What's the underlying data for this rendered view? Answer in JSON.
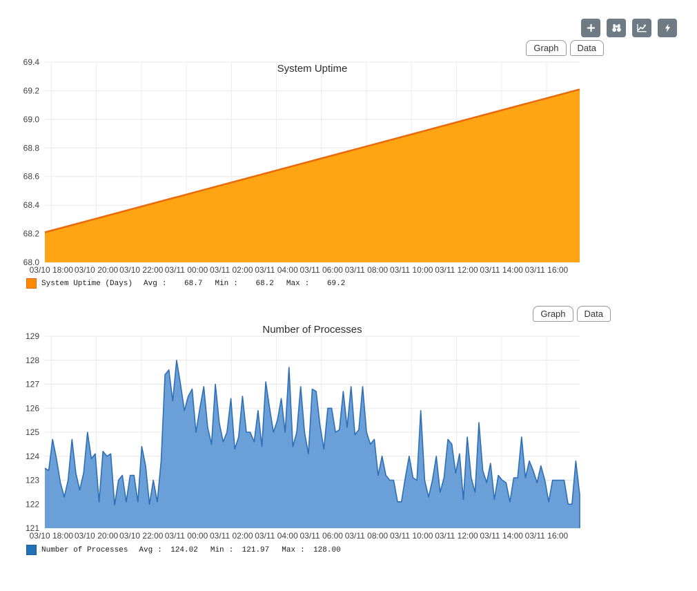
{
  "toolbar": {
    "buttons": [
      {
        "icon": "plus-icon"
      },
      {
        "icon": "binoculars-icon"
      },
      {
        "icon": "line-chart-icon"
      },
      {
        "icon": "lightning-icon"
      }
    ],
    "button_color": "#6e7b85"
  },
  "panels": [
    {
      "tabs": [
        "Graph",
        "Data"
      ],
      "legend": {
        "series": "System Uptime (Days)",
        "swatch_fill": "#ff8c00",
        "swatch_border": "#e8650d",
        "stats": [
          {
            "label": "Avg",
            "colon": ":",
            "value": "68.7"
          },
          {
            "label": "Min",
            "colon": ":",
            "value": "68.2"
          },
          {
            "label": "Max",
            "colon": ":",
            "value": "69.2"
          }
        ]
      }
    },
    {
      "tabs": [
        "Graph",
        "Data"
      ],
      "legend": {
        "series": "Number of Processes",
        "swatch_fill": "#2272b5",
        "swatch_border": "#1b5d99",
        "stats": [
          {
            "label": "Avg",
            "colon": ":",
            "value": "124.02"
          },
          {
            "label": "Min",
            "colon": ":",
            "value": "121.97"
          },
          {
            "label": "Max",
            "colon": ":",
            "value": "128.00"
          }
        ]
      }
    }
  ],
  "chart_data": [
    {
      "type": "area",
      "title": "System Uptime",
      "series_name": "System Uptime (Days)",
      "line_color": "#ea6909",
      "fill_color": "#ffa413",
      "grid": true,
      "legend_position": "bottom",
      "ylim": [
        68.0,
        69.4
      ],
      "y_ticks": [
        68.0,
        68.2,
        68.4,
        68.6,
        68.8,
        69.0,
        69.2,
        69.4
      ],
      "y_tick_labels": [
        "68.0",
        "68.2",
        "68.4",
        "68.6",
        "68.8",
        "69.0",
        "69.2",
        "69.4"
      ],
      "x_tick_labels": [
        "03/10 18:00",
        "03/10 20:00",
        "03/10 22:00",
        "03/11 00:00",
        "03/11 02:00",
        "03/11 04:00",
        "03/11 06:00",
        "03/11 08:00",
        "03/11 10:00",
        "03/11 12:00",
        "03/11 14:00",
        "03/11 16:00"
      ],
      "values": [
        68.21,
        69.21
      ],
      "stats": {
        "avg": 68.7,
        "min": 68.2,
        "max": 69.2
      },
      "close_right_edge": false
    },
    {
      "type": "area",
      "title": "Number of Processes",
      "series_name": "Number of Processes",
      "line_color": "#2d6eb5",
      "fill_color": "#6a9fd8",
      "grid": true,
      "legend_position": "bottom",
      "ylim": [
        121,
        129
      ],
      "y_ticks": [
        121,
        122,
        123,
        124,
        125,
        126,
        127,
        128,
        129
      ],
      "y_tick_labels": [
        "121",
        "122",
        "123",
        "124",
        "125",
        "126",
        "127",
        "128",
        "129"
      ],
      "x_tick_labels": [
        "03/10 18:00",
        "03/10 20:00",
        "03/10 22:00",
        "03/11 00:00",
        "03/11 02:00",
        "03/11 04:00",
        "03/11 06:00",
        "03/11 08:00",
        "03/11 10:00",
        "03/11 12:00",
        "03/11 14:00",
        "03/11 16:00"
      ],
      "values": [
        123.5,
        123.4,
        124.7,
        123.9,
        122.9,
        122.3,
        123.0,
        124.7,
        123.3,
        122.6,
        123.3,
        125.0,
        123.9,
        124.1,
        122.1,
        124.2,
        124.0,
        124.1,
        121.97,
        123.0,
        123.2,
        122.1,
        123.2,
        123.2,
        122.1,
        124.4,
        123.6,
        122.0,
        123.0,
        122.1,
        123.8,
        127.4,
        127.6,
        126.3,
        128.0,
        127.0,
        125.9,
        126.5,
        126.8,
        125.0,
        126.0,
        126.9,
        125.2,
        124.5,
        127.0,
        125.4,
        124.6,
        125.0,
        126.4,
        124.3,
        124.8,
        126.5,
        125.0,
        125.0,
        124.6,
        125.9,
        124.4,
        127.1,
        126.0,
        125.0,
        125.5,
        126.4,
        125.0,
        127.7,
        124.4,
        125.0,
        126.9,
        125.0,
        124.1,
        126.8,
        126.7,
        125.3,
        124.3,
        126.0,
        126.0,
        125.0,
        125.1,
        126.7,
        125.2,
        126.9,
        124.9,
        125.1,
        126.9,
        125.0,
        124.5,
        124.7,
        123.2,
        124.0,
        123.2,
        123.0,
        123.0,
        122.1,
        122.1,
        123.1,
        124.0,
        123.1,
        123.0,
        125.9,
        123.0,
        122.3,
        123.0,
        124.0,
        122.5,
        123.1,
        124.7,
        124.5,
        123.3,
        124.1,
        122.2,
        124.8,
        123.1,
        122.5,
        125.4,
        123.4,
        122.9,
        123.7,
        122.2,
        123.2,
        123.0,
        122.9,
        122.1,
        123.1,
        123.1,
        124.8,
        123.1,
        123.8,
        123.4,
        122.9,
        123.6,
        123.0,
        122.1,
        123.0,
        123.0,
        123.0,
        123.0,
        122.0,
        122.0,
        123.8,
        122.4
      ],
      "stats": {
        "avg": 124.02,
        "min": 121.97,
        "max": 128.0
      },
      "close_right_edge": true
    }
  ]
}
